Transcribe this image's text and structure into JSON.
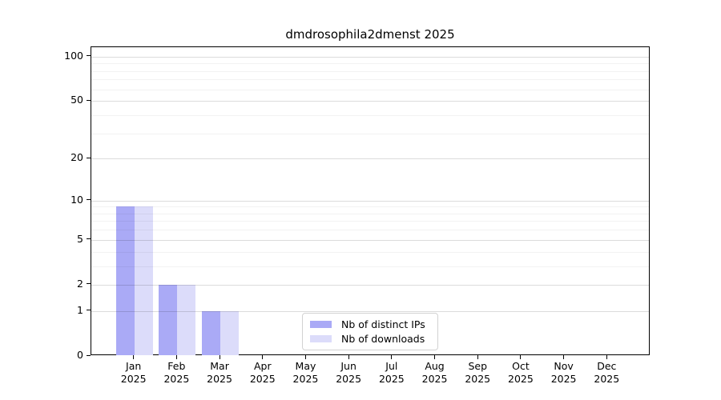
{
  "figure": {
    "background": "#ffffff"
  },
  "chart_data": {
    "type": "bar",
    "title": "dmdrosophila2dmenst 2025",
    "categories": [
      "Jan",
      "Feb",
      "Mar",
      "Apr",
      "May",
      "Jun",
      "Jul",
      "Aug",
      "Sep",
      "Oct",
      "Nov",
      "Dec"
    ],
    "category_year": "2025",
    "series": [
      {
        "name": "Nb of distinct IPs",
        "color": "#aaaaf6",
        "values": [
          9,
          2,
          1,
          0,
          0,
          0,
          0,
          0,
          0,
          0,
          0,
          0
        ]
      },
      {
        "name": "Nb of downloads",
        "color": "#dcdcfa",
        "values": [
          9,
          2,
          1,
          0,
          0,
          0,
          0,
          0,
          0,
          0,
          0,
          0
        ]
      }
    ],
    "xlabel": "",
    "ylabel": "",
    "yscale": "log1p",
    "ylim": [
      0,
      116
    ],
    "yticks": [
      0,
      1,
      2,
      5,
      10,
      20,
      50,
      100
    ],
    "minor_yticks": [
      3,
      4,
      6,
      7,
      8,
      9,
      30,
      40,
      60,
      70,
      80,
      90
    ],
    "grid": true,
    "grid_on_top": true,
    "legend_position": "lower-center-inside",
    "colors": {
      "spine": "#000000",
      "major_grid": "#dcdcdc",
      "minor_grid": "#f2f2f2",
      "legend_border": "#d2d2d2"
    }
  }
}
